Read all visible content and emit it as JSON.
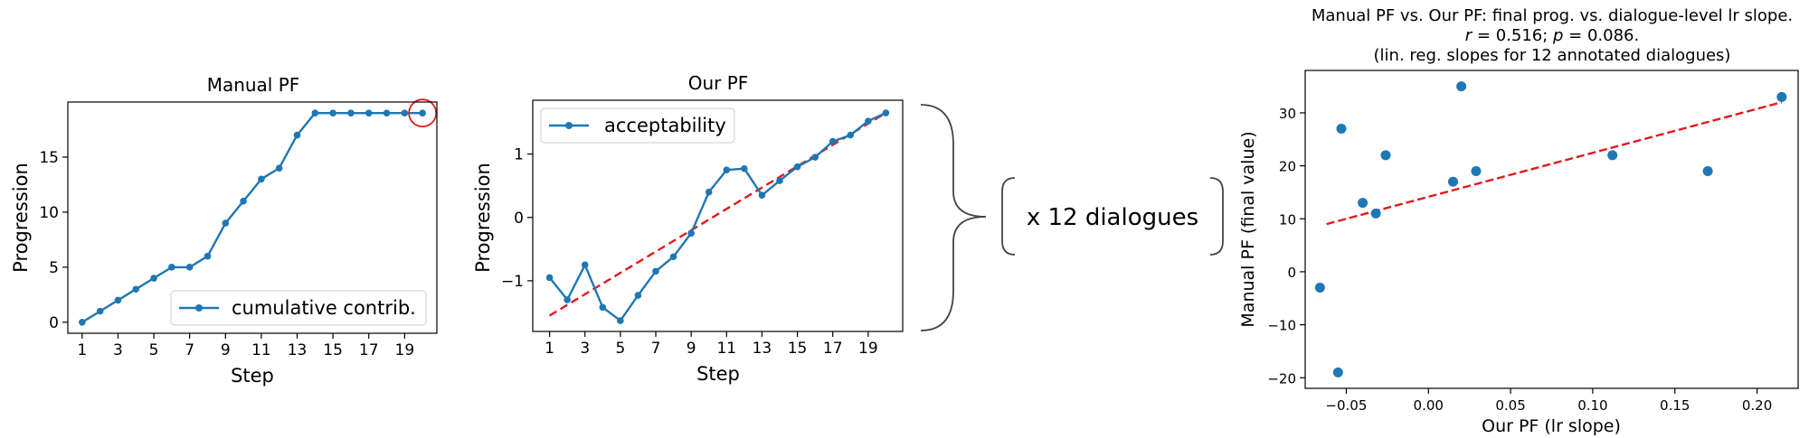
{
  "colors": {
    "series": "#1f77b4",
    "fit": "#e31a1c",
    "highlight": "#e31a1c",
    "brace": "#444444"
  },
  "middle_label": "x 12 dialogues",
  "chart_data": [
    {
      "type": "line",
      "title": "Manual PF",
      "xlabel": "Step",
      "ylabel": "Progression",
      "xlim": [
        0.2,
        20.8
      ],
      "ylim": [
        -1,
        20
      ],
      "xticks": [
        1,
        3,
        5,
        7,
        9,
        11,
        13,
        15,
        17,
        19
      ],
      "yticks": [
        0,
        5,
        10,
        15
      ],
      "legend": "lower-right",
      "series": [
        {
          "name": "cumulative contrib.",
          "x": [
            1,
            2,
            3,
            4,
            5,
            6,
            7,
            8,
            9,
            10,
            11,
            12,
            13,
            14,
            15,
            16,
            17,
            18,
            19,
            20
          ],
          "y": [
            0,
            1,
            2,
            3,
            4,
            5,
            5,
            6,
            9,
            11,
            13,
            14,
            17,
            19,
            19,
            19,
            19,
            19,
            19,
            19
          ]
        }
      ],
      "highlight_point": {
        "x": 20,
        "y": 19
      }
    },
    {
      "type": "line",
      "title": "Our PF",
      "xlabel": "Step",
      "ylabel": "Progression",
      "xlim": [
        0.05,
        20.95
      ],
      "ylim": [
        -1.8,
        1.85
      ],
      "xticks": [
        1,
        3,
        5,
        7,
        9,
        11,
        13,
        15,
        17,
        19
      ],
      "yticks": [
        -1,
        0,
        1
      ],
      "legend": "upper-left",
      "series": [
        {
          "name": "acceptability",
          "x": [
            1,
            2,
            3,
            4,
            5,
            6,
            7,
            8,
            9,
            10,
            11,
            12,
            13,
            14,
            15,
            16,
            17,
            18,
            19,
            20
          ],
          "y": [
            -0.95,
            -1.3,
            -0.75,
            -1.42,
            -1.63,
            -1.23,
            -0.85,
            -0.62,
            -0.25,
            0.4,
            0.75,
            0.77,
            0.35,
            0.58,
            0.8,
            0.95,
            1.2,
            1.3,
            1.52,
            1.65
          ]
        }
      ],
      "fit_line": {
        "x": [
          1,
          20
        ],
        "y": [
          -1.55,
          1.65
        ]
      }
    },
    {
      "type": "scatter",
      "title": "Manual PF vs. Our PF: final prog. vs. dialogue-level lr slope.",
      "subtitle_r": "r",
      "subtitle_r_val": " = 0.516;  ",
      "subtitle_p": "p",
      "subtitle_p_val": " = 0.086.",
      "subtitle2": "(lin. reg. slopes for 12 annotated dialogues)",
      "xlabel": "Our PF (lr slope)",
      "ylabel": "Manual PF (final value)",
      "xlim": [
        -0.075,
        0.225
      ],
      "ylim": [
        -22,
        38
      ],
      "xticks": [
        -0.05,
        0.0,
        0.05,
        0.1,
        0.15,
        0.2
      ],
      "xtick_labels": [
        "−0.05",
        "0.00",
        "0.05",
        "0.10",
        "0.15",
        "0.20"
      ],
      "yticks": [
        -20,
        -10,
        0,
        10,
        20,
        30
      ],
      "ytick_labels": [
        "−20",
        "−10",
        "0",
        "10",
        "20",
        "30"
      ],
      "points": {
        "x": [
          -0.066,
          -0.055,
          -0.053,
          -0.04,
          -0.032,
          -0.026,
          0.015,
          0.02,
          0.029,
          0.112,
          0.17,
          0.215
        ],
        "y": [
          -3,
          -19,
          27,
          13,
          11,
          22,
          17,
          35,
          19,
          22,
          19,
          33
        ]
      },
      "fit_line": {
        "x": [
          -0.062,
          0.215
        ],
        "y": [
          9,
          32
        ]
      }
    }
  ]
}
